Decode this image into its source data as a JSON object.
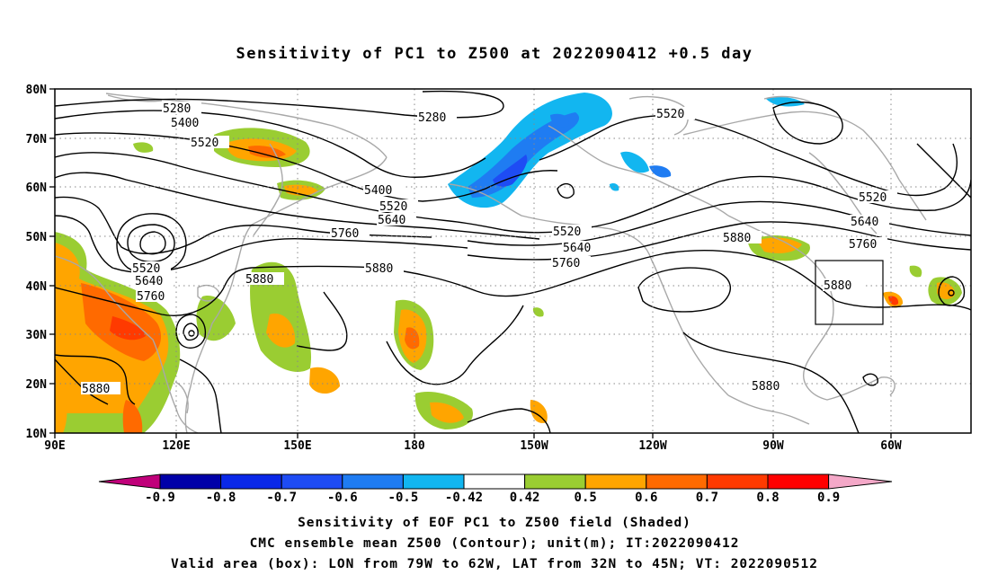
{
  "title": "Sensitivity of PC1 to Z500 at 2022090412 +0.5 day",
  "lat_labels": [
    "80N",
    "70N",
    "60N",
    "50N",
    "40N",
    "30N",
    "20N",
    "10N"
  ],
  "lon_labels": [
    "90E",
    "120E",
    "150E",
    "180",
    "150W",
    "120W",
    "90W",
    "60W"
  ],
  "contour_labels": [
    "5280",
    "5400",
    "5520",
    "5280",
    "5520",
    "5400",
    "5520",
    "5640",
    "5760",
    "5520",
    "5640",
    "5760",
    "5880",
    "5520",
    "5640",
    "5760",
    "5880",
    "5880",
    "5880",
    "5520",
    "5640",
    "5760",
    "5880",
    "5880"
  ],
  "colorbar": {
    "labels": [
      "-0.9",
      "-0.8",
      "-0.7",
      "-0.6",
      "-0.5",
      "-0.42",
      "0.42",
      "0.5",
      "0.6",
      "0.7",
      "0.8",
      "0.9"
    ],
    "colors": [
      "#c0007a",
      "#0000a8",
      "#0a28e8",
      "#1e4cf4",
      "#1f7cf2",
      "#12b6f0",
      "#ffffff",
      "#9acd32",
      "#ffa500",
      "#ff6a00",
      "#ff3a00",
      "#ff0000",
      "#f4a8c8"
    ]
  },
  "captions": {
    "line1": "Sensitivity of EOF PC1 to Z500 field (Shaded)",
    "line2": "CMC ensemble mean Z500 (Contour); unit(m); IT:2022090412",
    "line3": "Valid area (box): LON from 79W to 62W, LAT from 32N to 45N; VT: 2022090512"
  }
}
